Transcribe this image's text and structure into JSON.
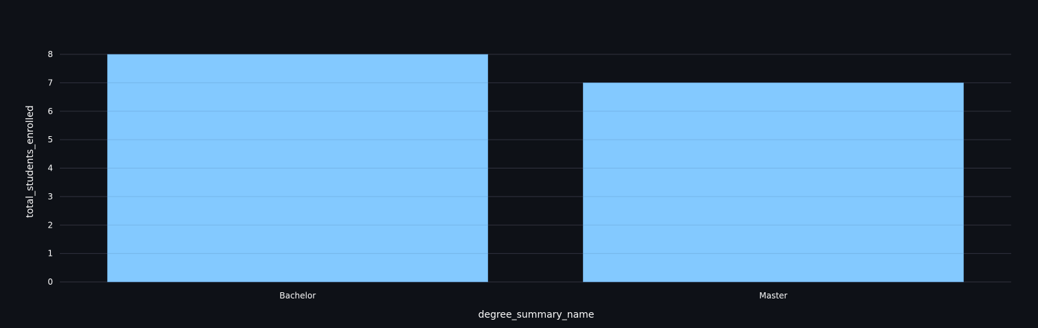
{
  "chart_data": {
    "type": "bar",
    "categories": [
      "Bachelor",
      "Master"
    ],
    "values": [
      8,
      7
    ],
    "title": "",
    "xlabel": "degree_summary_name",
    "ylabel": "total_students_enrolled",
    "ylim": [
      0,
      8
    ],
    "yticks": [
      "0",
      "1",
      "2",
      "3",
      "4",
      "5",
      "6",
      "7",
      "8"
    ],
    "grid": true,
    "legend": "none",
    "colors": {
      "background": "#0e1117",
      "bar": "#83c9ff",
      "grid": "#31333f",
      "text": "#fafafa"
    }
  }
}
